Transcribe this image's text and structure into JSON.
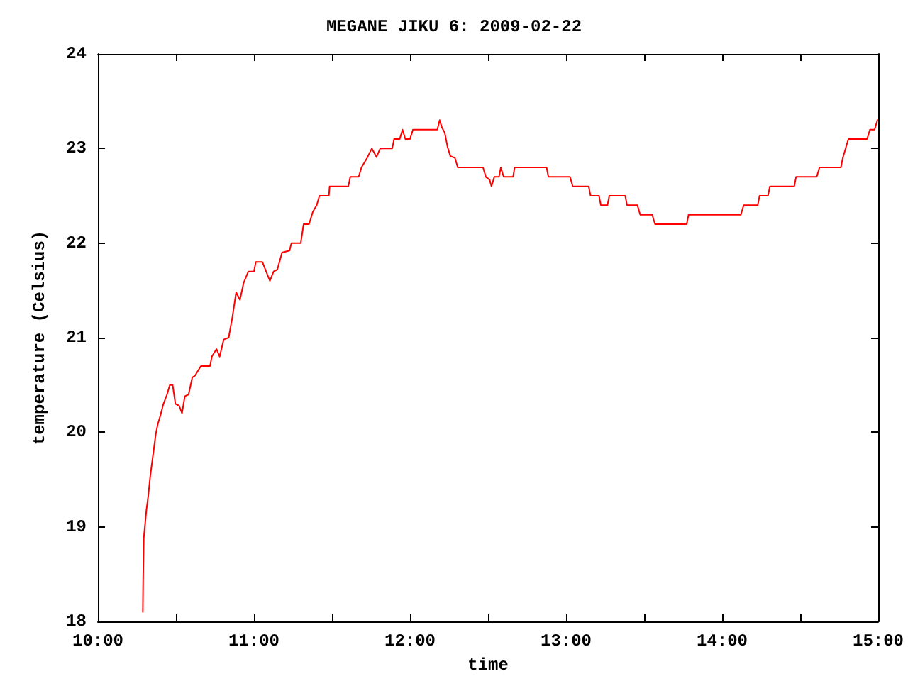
{
  "chart_data": {
    "type": "line",
    "title": "MEGANE JIKU 6: 2009-02-22",
    "xlabel": "time",
    "ylabel": "temperature (Celsius)",
    "xlim": [
      10,
      15
    ],
    "ylim": [
      18,
      24
    ],
    "xticks": [
      {
        "value": 10,
        "label": "10:00"
      },
      {
        "value": 10.5,
        "label": null
      },
      {
        "value": 11,
        "label": "11:00"
      },
      {
        "value": 11.5,
        "label": null
      },
      {
        "value": 12,
        "label": "12:00"
      },
      {
        "value": 12.5,
        "label": null
      },
      {
        "value": 13,
        "label": "13:00"
      },
      {
        "value": 13.5,
        "label": null
      },
      {
        "value": 14,
        "label": "14:00"
      },
      {
        "value": 14.5,
        "label": null
      },
      {
        "value": 15,
        "label": "15:00"
      }
    ],
    "yticks": [
      18,
      19,
      20,
      21,
      22,
      23,
      24
    ],
    "grid": false,
    "marker": "none",
    "line_style": "solid",
    "series": [
      {
        "color": "#ff0000",
        "x": [
          10.288,
          10.29,
          10.294,
          10.311,
          10.323,
          10.335,
          10.347,
          10.359,
          10.371,
          10.383,
          10.401,
          10.42,
          10.443,
          10.461,
          10.479,
          10.497,
          10.521,
          10.539,
          10.557,
          10.581,
          10.605,
          10.623,
          10.66,
          10.719,
          10.73,
          10.76,
          10.78,
          10.806,
          10.838,
          10.862,
          10.886,
          10.91,
          10.934,
          10.964,
          11.0,
          11.012,
          11.054,
          11.078,
          11.102,
          11.126,
          11.15,
          11.18,
          11.228,
          11.24,
          11.3,
          11.318,
          11.353,
          11.377,
          11.402,
          11.42,
          11.48,
          11.485,
          11.605,
          11.617,
          11.671,
          11.689,
          11.725,
          11.755,
          11.785,
          11.809,
          11.886,
          11.898,
          11.934,
          11.952,
          11.97,
          12.0,
          12.019,
          12.175,
          12.19,
          12.205,
          12.222,
          12.24,
          12.258,
          12.288,
          12.306,
          12.468,
          12.486,
          12.51,
          12.522,
          12.54,
          12.57,
          12.582,
          12.6,
          12.66,
          12.671,
          12.875,
          12.887,
          13.025,
          13.043,
          13.145,
          13.157,
          13.211,
          13.223,
          13.265,
          13.277,
          13.379,
          13.391,
          13.457,
          13.475,
          13.552,
          13.57,
          13.773,
          13.785,
          14.12,
          14.138,
          14.228,
          14.24,
          14.294,
          14.306,
          14.462,
          14.474,
          14.606,
          14.624,
          14.761,
          14.773,
          14.809,
          14.929,
          14.947,
          14.977,
          14.995
        ],
        "values": [
          18.1,
          18.45,
          18.88,
          19.18,
          19.33,
          19.53,
          19.68,
          19.83,
          19.98,
          20.08,
          20.18,
          20.3,
          20.4,
          20.5,
          20.5,
          20.3,
          20.28,
          20.2,
          20.38,
          20.4,
          20.58,
          20.6,
          20.7,
          20.7,
          20.8,
          20.88,
          20.8,
          20.98,
          21.0,
          21.22,
          21.48,
          21.4,
          21.58,
          21.7,
          21.7,
          21.8,
          21.8,
          21.7,
          21.6,
          21.7,
          21.72,
          21.9,
          21.92,
          22.0,
          22.0,
          22.2,
          22.2,
          22.33,
          22.4,
          22.5,
          22.5,
          22.6,
          22.6,
          22.7,
          22.7,
          22.8,
          22.9,
          23.0,
          22.91,
          23.0,
          23.0,
          23.1,
          23.1,
          23.2,
          23.1,
          23.1,
          23.2,
          23.2,
          23.3,
          23.22,
          23.17,
          23.02,
          22.92,
          22.9,
          22.8,
          22.8,
          22.7,
          22.67,
          22.6,
          22.7,
          22.7,
          22.8,
          22.7,
          22.7,
          22.8,
          22.8,
          22.7,
          22.7,
          22.6,
          22.6,
          22.5,
          22.5,
          22.4,
          22.4,
          22.5,
          22.5,
          22.4,
          22.4,
          22.3,
          22.3,
          22.2,
          22.2,
          22.3,
          22.3,
          22.4,
          22.4,
          22.5,
          22.5,
          22.6,
          22.6,
          22.7,
          22.7,
          22.8,
          22.8,
          22.9,
          23.1,
          23.1,
          23.2,
          23.2,
          23.3
        ]
      }
    ]
  }
}
